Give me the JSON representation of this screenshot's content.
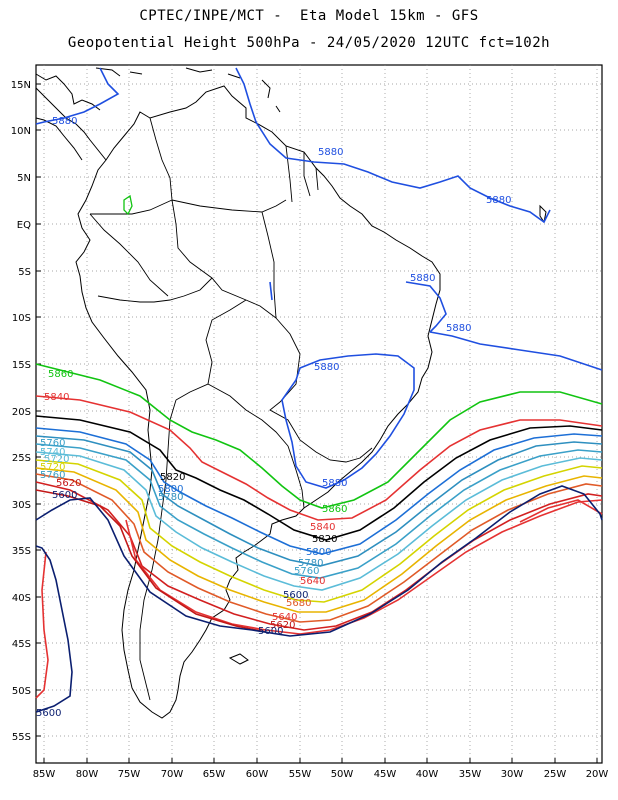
{
  "header": {
    "line1": "CPTEC/INPE/MCT -  Eta Model 15km - GFS",
    "line2": "Geopotential Height 500hPa - 24/05/2020 12UTC fct=102h"
  },
  "axes": {
    "lat_labels": [
      "15N",
      "10N",
      "5N",
      "EQ",
      "5S",
      "10S",
      "15S",
      "20S",
      "25S",
      "30S",
      "35S",
      "40S",
      "45S",
      "50S",
      "55S"
    ],
    "lon_labels": [
      "85W",
      "80W",
      "75W",
      "70W",
      "65W",
      "60W",
      "55W",
      "50W",
      "45W",
      "40W",
      "35W",
      "30W",
      "25W",
      "20W"
    ]
  },
  "map": {
    "projection": "lat-lon",
    "lon_range": [
      -86,
      -20
    ],
    "lat_range": [
      -58,
      16
    ],
    "grid": "dotted every 5 degrees"
  },
  "contours": [
    {
      "level": "5880",
      "color": "#1f4fe0"
    },
    {
      "level": "5860",
      "color": "#11c411"
    },
    {
      "level": "5840",
      "color": "#e53232"
    },
    {
      "level": "5820",
      "color": "#000000"
    },
    {
      "level": "5800",
      "color": "#1d6fd6"
    },
    {
      "level": "5780",
      "color": "#2e8fbf"
    },
    {
      "level": "5760",
      "color": "#3aa0c8"
    },
    {
      "level": "5740",
      "color": "#5bbcd8"
    },
    {
      "level": "5720",
      "color": "#d4d400"
    },
    {
      "level": "5700",
      "color": "#e8b400"
    },
    {
      "level": "5680",
      "color": "#e05a28"
    },
    {
      "level": "5660",
      "color": "#d22020"
    },
    {
      "level": "5620",
      "color": "#c21818"
    },
    {
      "level": "5600",
      "color": "#0b1f70"
    }
  ],
  "labels": [
    {
      "text": "5880",
      "color": "#1f4fe0"
    },
    {
      "text": "5880",
      "color": "#1f4fe0"
    },
    {
      "text": "5880",
      "color": "#1f4fe0"
    },
    {
      "text": "5880",
      "color": "#1f4fe0"
    },
    {
      "text": "5880",
      "color": "#1f4fe0"
    },
    {
      "text": "5880",
      "color": "#1f4fe0"
    },
    {
      "text": "5880",
      "color": "#1f4fe0"
    },
    {
      "text": "5860",
      "color": "#11c411"
    },
    {
      "text": "5860",
      "color": "#11c411"
    },
    {
      "text": "5840",
      "color": "#e53232"
    },
    {
      "text": "5840",
      "color": "#e53232"
    },
    {
      "text": "5820",
      "color": "#000000"
    },
    {
      "text": "5820",
      "color": "#000000"
    },
    {
      "text": "5800",
      "color": "#1d6fd6"
    },
    {
      "text": "5780",
      "color": "#2e8fbf"
    },
    {
      "text": "5760",
      "color": "#3aa0c8"
    },
    {
      "text": "5740",
      "color": "#5bbcd8"
    },
    {
      "text": "5720",
      "color": "#5bbcd8"
    },
    {
      "text": "5720",
      "color": "#d4d400"
    },
    {
      "text": "5760",
      "color": "#3aa0c8"
    },
    {
      "text": "5620",
      "color": "#c21818"
    },
    {
      "text": "5600",
      "color": "#0b1f70"
    },
    {
      "text": "5600",
      "color": "#0b1f70"
    },
    {
      "text": "5800",
      "color": "#1d6fd6"
    },
    {
      "text": "5780",
      "color": "#2e8fbf"
    },
    {
      "text": "5760",
      "color": "#3aa0c8"
    },
    {
      "text": "5680",
      "color": "#e05a28"
    },
    {
      "text": "5640",
      "color": "#e53232"
    },
    {
      "text": "5620",
      "color": "#c21818"
    },
    {
      "text": "5600",
      "color": "#0b1f70"
    },
    {
      "text": "5640",
      "color": "#e53232"
    },
    {
      "text": "5600",
      "color": "#0b1f70"
    }
  ]
}
